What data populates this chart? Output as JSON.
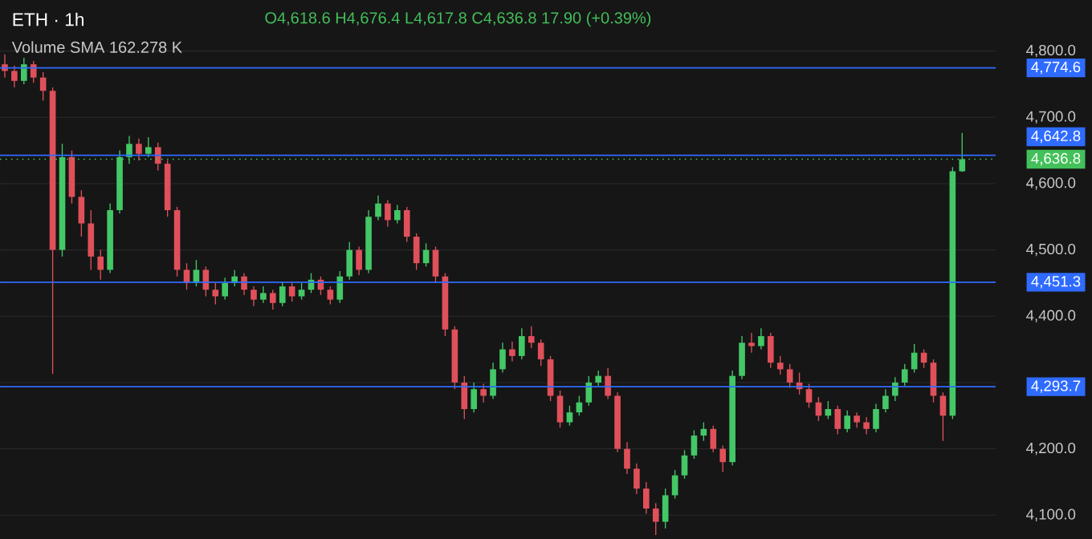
{
  "chart_data": {
    "type": "candlestick",
    "title": "ETH · 1h",
    "annotations": [
      "O4,618.6 H4,676.4 L4,617.8 C4,636.8 17.90 (+0.39%)",
      "Volume SMA 162.278 K"
    ],
    "categories": [
      null,
      null,
      null,
      null,
      null,
      null,
      null,
      null,
      null,
      null,
      null,
      null,
      null,
      null,
      null,
      null,
      null,
      null,
      null,
      null,
      null,
      null,
      null,
      null,
      null,
      null,
      null,
      null,
      null,
      null,
      null,
      null,
      null,
      null,
      null,
      null,
      null,
      null,
      null,
      null,
      null,
      null,
      null,
      null,
      null,
      null,
      null,
      null,
      null,
      null,
      null,
      null,
      null,
      null,
      null,
      null,
      null,
      null,
      null,
      null,
      null,
      null,
      null,
      null,
      null,
      null,
      null,
      null,
      null,
      null,
      null,
      null,
      null,
      null,
      null,
      null,
      null,
      null,
      null,
      null,
      null,
      null,
      null,
      null,
      null,
      null,
      null,
      null,
      null,
      null,
      null,
      null,
      null,
      null,
      null,
      null,
      null,
      null,
      null,
      null,
      null
    ],
    "ohlc": [
      [
        4780,
        4795,
        4760,
        4770
      ],
      [
        4770,
        4778,
        4745,
        4755
      ],
      [
        4755,
        4790,
        4750,
        4780
      ],
      [
        4780,
        4785,
        4752,
        4760
      ],
      [
        4760,
        4768,
        4725,
        4740
      ],
      [
        4740,
        4745,
        4313,
        4500
      ],
      [
        4500,
        4660,
        4490,
        4640
      ],
      [
        4640,
        4650,
        4570,
        4580
      ],
      [
        4580,
        4590,
        4520,
        4540
      ],
      [
        4540,
        4560,
        4470,
        4490
      ],
      [
        4490,
        4500,
        4455,
        4470
      ],
      [
        4470,
        4570,
        4465,
        4560
      ],
      [
        4560,
        4650,
        4555,
        4640
      ],
      [
        4640,
        4672,
        4630,
        4660
      ],
      [
        4660,
        4668,
        4635,
        4645
      ],
      [
        4645,
        4670,
        4640,
        4655
      ],
      [
        4655,
        4662,
        4620,
        4630
      ],
      [
        4630,
        4635,
        4550,
        4560
      ],
      [
        4560,
        4565,
        4460,
        4470
      ],
      [
        4470,
        4480,
        4440,
        4450
      ],
      [
        4450,
        4485,
        4445,
        4470
      ],
      [
        4470,
        4475,
        4430,
        4440
      ],
      [
        4440,
        4450,
        4418,
        4430
      ],
      [
        4430,
        4458,
        4425,
        4450
      ],
      [
        4450,
        4470,
        4445,
        4460
      ],
      [
        4460,
        4465,
        4432,
        4440
      ],
      [
        4440,
        4445,
        4415,
        4425
      ],
      [
        4425,
        4445,
        4420,
        4435
      ],
      [
        4435,
        4440,
        4410,
        4420
      ],
      [
        4420,
        4452,
        4415,
        4445
      ],
      [
        4445,
        4450,
        4422,
        4430
      ],
      [
        4430,
        4450,
        4425,
        4440
      ],
      [
        4440,
        4465,
        4435,
        4455
      ],
      [
        4455,
        4460,
        4432,
        4440
      ],
      [
        4440,
        4445,
        4418,
        4425
      ],
      [
        4425,
        4468,
        4420,
        4460
      ],
      [
        4460,
        4512,
        4455,
        4500
      ],
      [
        4500,
        4505,
        4462,
        4470
      ],
      [
        4470,
        4560,
        4465,
        4550
      ],
      [
        4550,
        4582,
        4545,
        4570
      ],
      [
        4570,
        4575,
        4535,
        4545
      ],
      [
        4545,
        4568,
        4540,
        4560
      ],
      [
        4560,
        4565,
        4512,
        4520
      ],
      [
        4520,
        4525,
        4470,
        4480
      ],
      [
        4480,
        4510,
        4475,
        4500
      ],
      [
        4500,
        4505,
        4450,
        4460
      ],
      [
        4460,
        4465,
        4370,
        4380
      ],
      [
        4380,
        4385,
        4290,
        4300
      ],
      [
        4300,
        4310,
        4245,
        4260
      ],
      [
        4260,
        4300,
        4255,
        4290
      ],
      [
        4290,
        4298,
        4270,
        4280
      ],
      [
        4280,
        4330,
        4275,
        4320
      ],
      [
        4320,
        4360,
        4315,
        4350
      ],
      [
        4350,
        4362,
        4332,
        4340
      ],
      [
        4340,
        4382,
        4335,
        4370
      ],
      [
        4370,
        4385,
        4352,
        4360
      ],
      [
        4360,
        4365,
        4325,
        4335
      ],
      [
        4335,
        4340,
        4272,
        4280
      ],
      [
        4280,
        4288,
        4232,
        4240
      ],
      [
        4240,
        4265,
        4235,
        4255
      ],
      [
        4255,
        4280,
        4250,
        4270
      ],
      [
        4270,
        4310,
        4265,
        4300
      ],
      [
        4300,
        4318,
        4295,
        4310
      ],
      [
        4310,
        4322,
        4275,
        4280
      ],
      [
        4280,
        4285,
        4195,
        4200
      ],
      [
        4200,
        4210,
        4162,
        4170
      ],
      [
        4170,
        4178,
        4132,
        4140
      ],
      [
        4140,
        4150,
        4102,
        4110
      ],
      [
        4110,
        4118,
        4070,
        4090
      ],
      [
        4090,
        4140,
        4080,
        4130
      ],
      [
        4130,
        4168,
        4125,
        4160
      ],
      [
        4160,
        4198,
        4155,
        4190
      ],
      [
        4190,
        4228,
        4185,
        4220
      ],
      [
        4220,
        4240,
        4212,
        4230
      ],
      [
        4230,
        4235,
        4195,
        4200
      ],
      [
        4200,
        4205,
        4165,
        4180
      ],
      [
        4180,
        4318,
        4175,
        4310
      ],
      [
        4310,
        4370,
        4305,
        4360
      ],
      [
        4360,
        4375,
        4345,
        4355
      ],
      [
        4355,
        4382,
        4350,
        4370
      ],
      [
        4370,
        4375,
        4322,
        4330
      ],
      [
        4330,
        4340,
        4312,
        4320
      ],
      [
        4320,
        4328,
        4292,
        4300
      ],
      [
        4300,
        4315,
        4282,
        4290
      ],
      [
        4290,
        4298,
        4262,
        4270
      ],
      [
        4270,
        4278,
        4242,
        4250
      ],
      [
        4250,
        4272,
        4245,
        4260
      ],
      [
        4260,
        4265,
        4222,
        4230
      ],
      [
        4230,
        4258,
        4225,
        4250
      ],
      [
        4250,
        4255,
        4232,
        4240
      ],
      [
        4240,
        4248,
        4222,
        4230
      ],
      [
        4230,
        4268,
        4225,
        4260
      ],
      [
        4260,
        4290,
        4255,
        4280
      ],
      [
        4280,
        4308,
        4272,
        4300
      ],
      [
        4300,
        4328,
        4295,
        4320
      ],
      [
        4320,
        4358,
        4315,
        4345
      ],
      [
        4345,
        4350,
        4322,
        4330
      ],
      [
        4330,
        4335,
        4270,
        4280
      ],
      [
        4280,
        4285,
        4212,
        4250
      ],
      [
        4250,
        4625,
        4245,
        4618.6
      ],
      [
        4618.6,
        4676.4,
        4617.8,
        4636.8
      ]
    ],
    "ylim": [
      4064,
      4877
    ],
    "yticks": [
      {
        "value": 4100,
        "label": "4,100.0"
      },
      {
        "value": 4200,
        "label": "4,200.0"
      },
      {
        "value": 4300,
        "label": null
      },
      {
        "value": 4400,
        "label": "4,400.0"
      },
      {
        "value": 4500,
        "label": "4,500.0"
      },
      {
        "value": 4600,
        "label": "4,600.0"
      },
      {
        "value": 4700,
        "label": "4,700.0"
      },
      {
        "value": 4800,
        "label": "4,800.0"
      }
    ],
    "ref_lines": [
      {
        "axis": "y",
        "value": 4774.6,
        "label": "4,774.6",
        "color": "#2f6bff"
      },
      {
        "axis": "y",
        "value": 4642.8,
        "label": "4,642.8",
        "color": "#2f6bff"
      },
      {
        "axis": "y",
        "value": 4636.8,
        "label": "4,636.8",
        "color": "#43c05a",
        "line_style": "dotted"
      },
      {
        "axis": "y",
        "value": 4451.3,
        "label": "4,451.3",
        "color": "#2f6bff"
      },
      {
        "axis": "y",
        "value": 4293.7,
        "label": "4,293.7",
        "color": "#2f6bff"
      }
    ],
    "grid": "y",
    "tick_labels": "y"
  }
}
